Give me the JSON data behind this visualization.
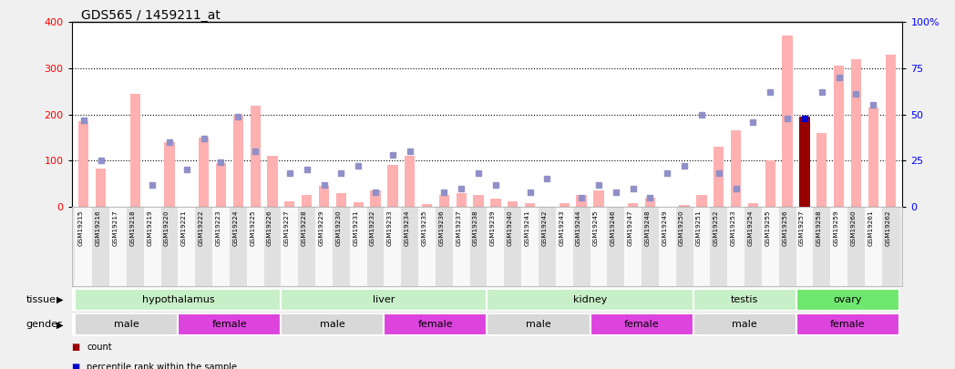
{
  "title": "GDS565 / 1459211_at",
  "samples": [
    "GSM19215",
    "GSM19216",
    "GSM19217",
    "GSM19218",
    "GSM19219",
    "GSM19220",
    "GSM19221",
    "GSM19222",
    "GSM19223",
    "GSM19224",
    "GSM19225",
    "GSM19226",
    "GSM19227",
    "GSM19228",
    "GSM19229",
    "GSM19230",
    "GSM19231",
    "GSM19232",
    "GSM19233",
    "GSM19234",
    "GSM19235",
    "GSM19236",
    "GSM19237",
    "GSM19238",
    "GSM19239",
    "GSM19240",
    "GSM19241",
    "GSM19242",
    "GSM19243",
    "GSM19244",
    "GSM19245",
    "GSM19246",
    "GSM19247",
    "GSM19248",
    "GSM19249",
    "GSM19250",
    "GSM19251",
    "GSM19252",
    "GSM19253",
    "GSM19254",
    "GSM19255",
    "GSM19256",
    "GSM19257",
    "GSM19258",
    "GSM19259",
    "GSM19260",
    "GSM19261",
    "GSM19262"
  ],
  "value_bars": [
    185,
    82,
    0,
    245,
    0,
    140,
    0,
    150,
    95,
    200,
    218,
    110,
    12,
    25,
    45,
    30,
    10,
    35,
    90,
    110,
    5,
    25,
    30,
    25,
    18,
    12,
    8,
    0,
    8,
    25,
    35,
    0,
    8,
    20,
    0,
    4,
    25,
    130,
    165,
    8,
    100,
    370,
    195,
    160,
    305,
    320,
    215,
    330
  ],
  "rank_dots": [
    47,
    25,
    0,
    0,
    12,
    35,
    20,
    37,
    24,
    49,
    30,
    0,
    18,
    20,
    12,
    18,
    22,
    8,
    28,
    30,
    0,
    8,
    10,
    18,
    12,
    0,
    8,
    15,
    0,
    5,
    12,
    8,
    10,
    5,
    18,
    22,
    50,
    18,
    10,
    46,
    62,
    48,
    49,
    62,
    70,
    61,
    55,
    0
  ],
  "count_bars": [
    0,
    0,
    0,
    0,
    0,
    0,
    0,
    0,
    0,
    0,
    0,
    0,
    0,
    0,
    0,
    0,
    0,
    0,
    0,
    0,
    0,
    0,
    0,
    0,
    0,
    0,
    0,
    0,
    0,
    0,
    0,
    0,
    0,
    0,
    0,
    0,
    0,
    0,
    0,
    0,
    0,
    0,
    195,
    0,
    0,
    0,
    0,
    0
  ],
  "count_rank_dots": [
    0,
    0,
    0,
    0,
    0,
    0,
    0,
    0,
    0,
    0,
    0,
    0,
    0,
    0,
    0,
    0,
    0,
    0,
    0,
    0,
    0,
    0,
    0,
    0,
    0,
    0,
    0,
    0,
    0,
    0,
    0,
    0,
    0,
    0,
    0,
    0,
    0,
    0,
    0,
    0,
    0,
    0,
    48,
    0,
    0,
    0,
    0,
    0
  ],
  "tissue_groups": [
    {
      "label": "hypothalamus",
      "start": 0,
      "end": 11,
      "color": "#c8f0c8"
    },
    {
      "label": "liver",
      "start": 12,
      "end": 23,
      "color": "#c8f0c8"
    },
    {
      "label": "kidney",
      "start": 24,
      "end": 35,
      "color": "#c8f0c8"
    },
    {
      "label": "testis",
      "start": 36,
      "end": 41,
      "color": "#c8f0c8"
    },
    {
      "label": "ovary",
      "start": 42,
      "end": 47,
      "color": "#70e870"
    }
  ],
  "gender_groups": [
    {
      "label": "male",
      "start": 0,
      "end": 5,
      "color": "#d8d8d8"
    },
    {
      "label": "female",
      "start": 6,
      "end": 11,
      "color": "#dd44dd"
    },
    {
      "label": "male",
      "start": 12,
      "end": 17,
      "color": "#d8d8d8"
    },
    {
      "label": "female",
      "start": 18,
      "end": 23,
      "color": "#dd44dd"
    },
    {
      "label": "male",
      "start": 24,
      "end": 29,
      "color": "#d8d8d8"
    },
    {
      "label": "female",
      "start": 30,
      "end": 35,
      "color": "#dd44dd"
    },
    {
      "label": "male",
      "start": 36,
      "end": 41,
      "color": "#d8d8d8"
    },
    {
      "label": "female",
      "start": 42,
      "end": 47,
      "color": "#dd44dd"
    }
  ],
  "ylim_left": [
    0,
    400
  ],
  "ylim_right": [
    0,
    100
  ],
  "yticks_left": [
    0,
    100,
    200,
    300,
    400
  ],
  "yticks_right": [
    0,
    25,
    50,
    75,
    100
  ],
  "bar_color_value": "#ffb0b0",
  "bar_color_count": "#990000",
  "dot_color_rank": "#9090c8",
  "dot_color_count_rank": "#0000cc",
  "bg_color": "#f0f0f0",
  "plot_bg": "#ffffff",
  "right_yaxis_labels": [
    "0",
    "25",
    "50",
    "75",
    "100%"
  ]
}
